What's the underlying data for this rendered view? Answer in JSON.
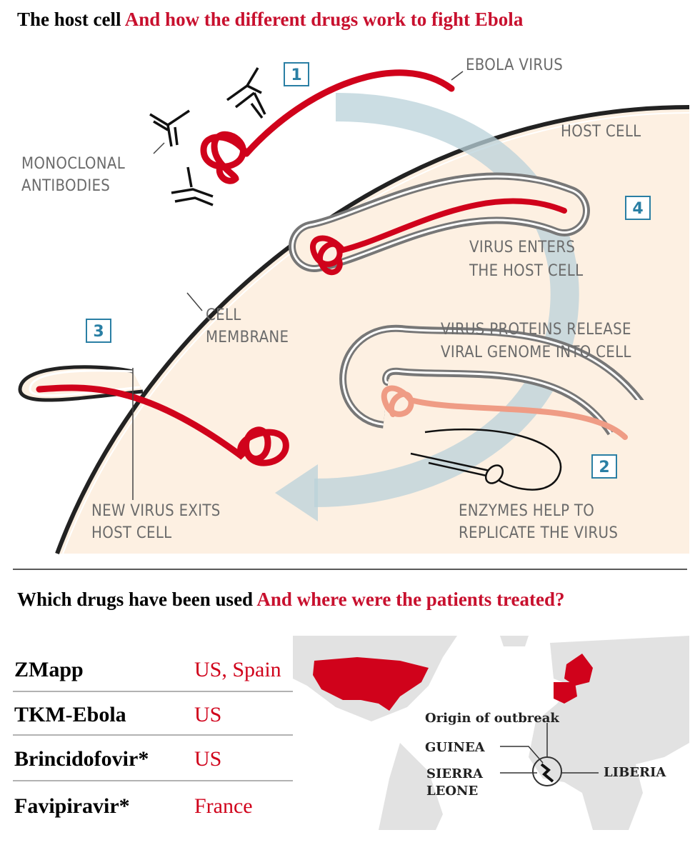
{
  "header": {
    "title": "The host cell",
    "subtitle": "And how the different drugs work to fight Ebola"
  },
  "diagram": {
    "steps": [
      "1",
      "2",
      "3",
      "4"
    ],
    "labels": {
      "ebola_virus": "EBOLA VIRUS",
      "host_cell": "HOST CELL",
      "antibodies": [
        "MONOCLONAL",
        "ANTIBODIES"
      ],
      "virus_enters": [
        "VIRUS ENTERS",
        "THE HOST CELL"
      ],
      "membrane": [
        "CELL",
        "MEMBRANE"
      ],
      "proteins": [
        "VIRUS PROTEINS RELEASE",
        "VIRAL GENOME INTO CELL"
      ],
      "exits": [
        "NEW VIRUS EXITS",
        "HOST CELL"
      ],
      "enzymes": [
        "ENZYMES HELP TO",
        "REPLICATE THE VIRUS"
      ]
    }
  },
  "section": {
    "title": "Which drugs have been used",
    "subtitle": "And where were the patients treated?"
  },
  "table": {
    "rows": [
      [
        "ZMapp",
        "US, Spain"
      ],
      [
        "TKM-Ebola",
        "US"
      ],
      [
        "Brincidofovir*",
        "US"
      ],
      [
        "Favipiravir*",
        "France"
      ]
    ]
  },
  "map": {
    "title": "Origin of outbreak",
    "labels": {
      "guinea": "GUINEA",
      "sierra_leone": [
        "SIERRA",
        "LEONE"
      ],
      "liberia": "LIBERIA"
    }
  }
}
